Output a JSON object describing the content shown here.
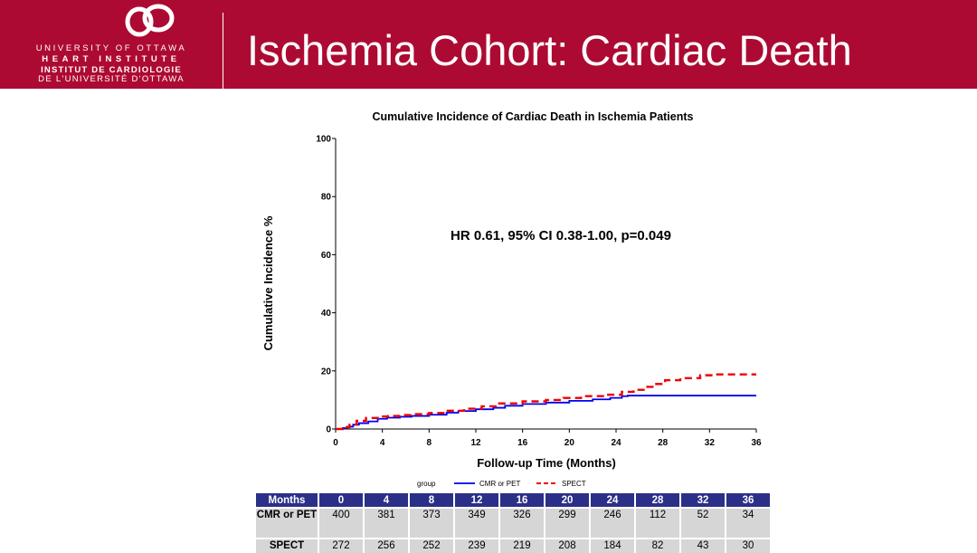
{
  "header": {
    "title": "Ischemia Cohort: Cardiac Death",
    "logo_lines": [
      "UNIVERSITY OF OTTAWA",
      "HEART INSTITUTE",
      "INSTITUT DE CARDIOLOGIE",
      "DE L'UNIVERSITÉ D'OTTAWA"
    ],
    "brand_color": "#ad0a33"
  },
  "chart_data": {
    "type": "line",
    "title": "Cumulative Incidence of Cardiac Death in Ischemia Patients",
    "xlabel": "Follow-up Time (Months)",
    "ylabel": "Cumulative Incidence %",
    "xlim": [
      0,
      36
    ],
    "ylim": [
      0,
      100
    ],
    "xticks": [
      0,
      4,
      8,
      12,
      16,
      20,
      24,
      28,
      32,
      36
    ],
    "yticks": [
      0,
      20,
      40,
      60,
      80,
      100
    ],
    "annotation": "HR 0.61, 95% CI 0.38-1.00, p=0.049",
    "legend_title": "group",
    "series": [
      {
        "name": "CMR or PET",
        "color": "#0000ee",
        "style": "solid",
        "x": [
          0,
          0.6,
          1,
          1.5,
          2,
          2.8,
          3.6,
          4.4,
          5.5,
          6.5,
          8,
          9.5,
          10.5,
          12,
          13.5,
          14.5,
          16,
          18,
          20,
          22,
          23.5,
          24.5,
          25,
          36
        ],
        "y": [
          0,
          0.3,
          0.8,
          1.5,
          2.0,
          2.6,
          3.5,
          3.9,
          4.2,
          4.5,
          4.9,
          5.6,
          6.2,
          6.8,
          7.3,
          8.0,
          8.6,
          9.1,
          9.7,
          10.2,
          10.7,
          11.3,
          11.5,
          11.5
        ]
      },
      {
        "name": "SPECT",
        "color": "#ee0000",
        "style": "dashed",
        "x": [
          0,
          0.6,
          1.2,
          1.8,
          2.6,
          3.6,
          4.5,
          5.5,
          6.5,
          8,
          9.5,
          11,
          12.5,
          14,
          16,
          18,
          19.5,
          21,
          23,
          24.5,
          25.5,
          26.5,
          27.3,
          28.2,
          29.5,
          31.2,
          32.5,
          36
        ],
        "y": [
          0,
          0.6,
          1.5,
          2.8,
          3.8,
          4.3,
          4.5,
          4.8,
          5.1,
          5.5,
          6.3,
          7.0,
          7.8,
          8.8,
          9.5,
          10.0,
          10.7,
          11.3,
          11.8,
          12.8,
          13.5,
          14.5,
          15.5,
          16.8,
          17.5,
          18.5,
          18.8,
          18.8
        ]
      }
    ]
  },
  "risk_table": {
    "header_label": "Months",
    "months": [
      "0",
      "4",
      "8",
      "12",
      "16",
      "20",
      "24",
      "28",
      "32",
      "36"
    ],
    "rows": [
      {
        "label": "CMR or PET",
        "values": [
          "400",
          "381",
          "373",
          "349",
          "326",
          "299",
          "246",
          "112",
          "52",
          "34"
        ]
      },
      {
        "label": "SPECT",
        "values": [
          "272",
          "256",
          "252",
          "239",
          "219",
          "208",
          "184",
          "82",
          "43",
          "30"
        ]
      }
    ]
  }
}
